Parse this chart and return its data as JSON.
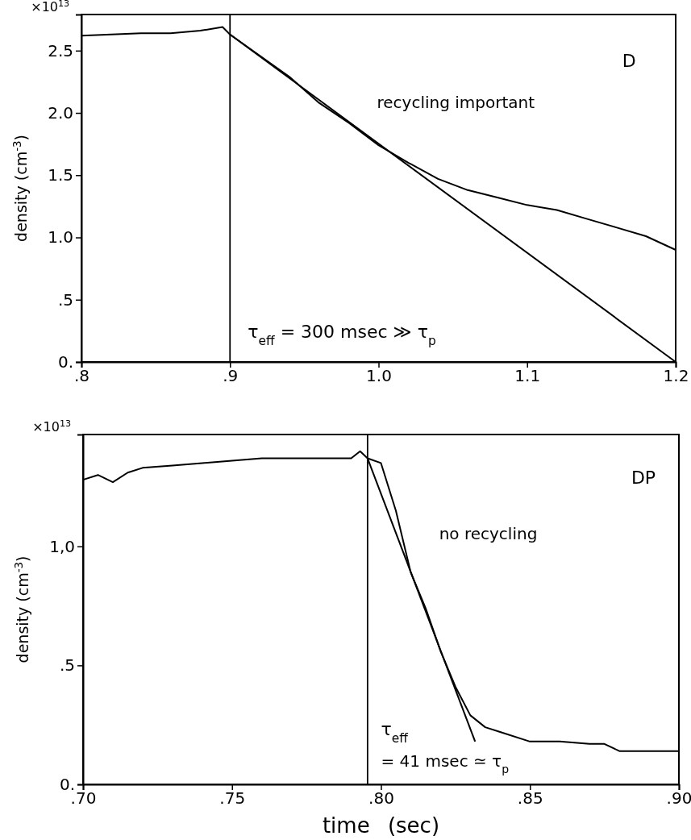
{
  "chart_data": [
    {
      "type": "line",
      "ylabel": "density (cm$^{-3}$)",
      "annotations": [
        "×10$^{13}$",
        "D",
        "recycling important",
        "τ$_{eff}$ = 300 msec ≫ τ$_{p}$"
      ],
      "xlim": [
        0.8,
        1.2
      ],
      "xticks": [
        {
          "value": 0.8,
          "label": ".8"
        },
        {
          "value": 0.9,
          "label": ".9"
        },
        {
          "value": 1.0,
          "label": "1.0"
        },
        1.1,
        1.2
      ],
      "ylim": [
        0,
        2.79
      ],
      "yticks": [
        {
          "value": 0,
          "label": "0."
        },
        {
          "value": 0.5,
          "label": ".5"
        },
        {
          "value": 1.0,
          "label": "1.0"
        },
        1.5,
        {
          "value": 2.0,
          "label": "2.0"
        },
        2.5
      ],
      "grid": false,
      "marker": "none",
      "line_style": "solid",
      "ref_lines": [
        {
          "axis": "x",
          "value": 0.9,
          "color": "#000000"
        }
      ],
      "series": [
        {
          "color": "#000000",
          "x": [
            0.8,
            0.82,
            0.84,
            0.86,
            0.88,
            0.895,
            0.9,
            0.92,
            0.94,
            0.96,
            0.98,
            1.0,
            1.02,
            1.04,
            1.06,
            1.08,
            1.1,
            1.12,
            1.14,
            1.16,
            1.18,
            1.2
          ],
          "values": [
            2.62,
            2.63,
            2.64,
            2.64,
            2.66,
            2.69,
            2.63,
            2.46,
            2.29,
            2.08,
            1.92,
            1.74,
            1.6,
            1.47,
            1.38,
            1.32,
            1.26,
            1.22,
            1.15,
            1.08,
            1.01,
            0.9
          ]
        },
        {
          "color": "#000000",
          "x": [
            0.9,
            1.2
          ],
          "values": [
            2.63,
            0
          ]
        }
      ]
    },
    {
      "type": "line",
      "xlabel": "time (sec)",
      "ylabel": "density (cm$^{-3}$)",
      "annotations": [
        "×10$^{13}$",
        "DP",
        "no recycling",
        "τ$_{eff}$",
        "= 41 msec ≃ τ$_{p}$"
      ],
      "xlim": [
        0.7,
        0.9
      ],
      "xticks": [
        {
          "value": 0.7,
          "label": ".70"
        },
        {
          "value": 0.75,
          "label": ".75"
        },
        {
          "value": 0.8,
          "label": ".80"
        },
        {
          "value": 0.85,
          "label": ".85"
        },
        {
          "value": 0.9,
          "label": ".90"
        }
      ],
      "ylim": [
        0,
        1.47
      ],
      "yticks": [
        {
          "value": 0,
          "label": "0."
        },
        {
          "value": 0.5,
          "label": ".5"
        },
        {
          "value": 1.0,
          "label": "1,0"
        }
      ],
      "grid": false,
      "marker": "none",
      "line_style": "solid",
      "ref_lines": [
        {
          "axis": "x",
          "value": 0.7955,
          "color": "#000000"
        }
      ],
      "series": [
        {
          "color": "#000000",
          "x": [
            0.7,
            0.705,
            0.71,
            0.715,
            0.72,
            0.73,
            0.74,
            0.75,
            0.76,
            0.77,
            0.78,
            0.79,
            0.793,
            0.7955,
            0.8,
            0.805,
            0.81,
            0.815,
            0.82,
            0.825,
            0.83,
            0.835,
            0.84,
            0.85,
            0.86,
            0.87,
            0.875,
            0.88,
            0.89,
            0.9
          ],
          "values": [
            1.28,
            1.3,
            1.27,
            1.31,
            1.33,
            1.34,
            1.35,
            1.36,
            1.37,
            1.37,
            1.37,
            1.37,
            1.4,
            1.37,
            1.35,
            1.15,
            0.89,
            0.74,
            0.56,
            0.41,
            0.29,
            0.24,
            0.22,
            0.18,
            0.18,
            0.17,
            0.17,
            0.14,
            0.14,
            0.14
          ]
        },
        {
          "color": "#000000",
          "x": [
            0.7955,
            0.8316
          ],
          "values": [
            1.37,
            0.18
          ]
        }
      ]
    }
  ]
}
